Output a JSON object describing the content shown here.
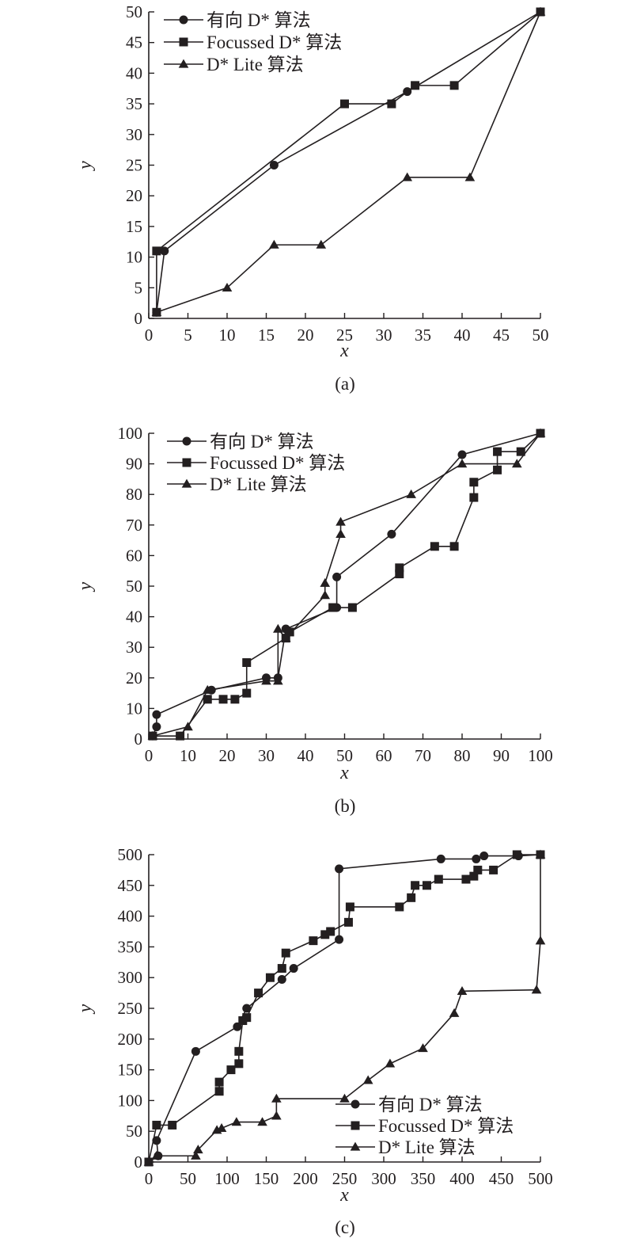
{
  "chart_data": [
    {
      "type": "line",
      "caption": "(a)",
      "xlabel": "x",
      "ylabel": "y",
      "xlim": [
        0,
        50
      ],
      "ylim": [
        0,
        50
      ],
      "xticks": [
        0,
        5,
        10,
        15,
        20,
        25,
        30,
        35,
        40,
        45,
        50
      ],
      "yticks": [
        0,
        5,
        10,
        15,
        20,
        25,
        30,
        35,
        40,
        45,
        50
      ],
      "legend_position": "top-left",
      "series": [
        {
          "name": "有向 D* 算法",
          "marker": "circle",
          "points": [
            [
              1,
              1
            ],
            [
              2,
              11
            ],
            [
              16,
              25
            ],
            [
              33,
              37
            ],
            [
              50,
              50
            ]
          ]
        },
        {
          "name": "Focussed D* 算法",
          "marker": "square",
          "points": [
            [
              1,
              1
            ],
            [
              1,
              11
            ],
            [
              25,
              35
            ],
            [
              31,
              35
            ],
            [
              34,
              38
            ],
            [
              39,
              38
            ],
            [
              50,
              50
            ]
          ]
        },
        {
          "name": "D* Lite 算法",
          "marker": "triangle",
          "points": [
            [
              1,
              1
            ],
            [
              10,
              5
            ],
            [
              16,
              12
            ],
            [
              22,
              12
            ],
            [
              33,
              23
            ],
            [
              41,
              23
            ],
            [
              50,
              50
            ]
          ]
        }
      ]
    },
    {
      "type": "line",
      "caption": "(b)",
      "xlabel": "x",
      "ylabel": "y",
      "xlim": [
        0,
        100
      ],
      "ylim": [
        0,
        100
      ],
      "xticks": [
        0,
        10,
        20,
        30,
        40,
        50,
        60,
        70,
        80,
        90,
        100
      ],
      "yticks": [
        0,
        10,
        20,
        30,
        40,
        50,
        60,
        70,
        80,
        90,
        100
      ],
      "legend_position": "top-left",
      "series": [
        {
          "name": "有向 D* 算法",
          "marker": "circle",
          "points": [
            [
              1,
              1
            ],
            [
              2,
              4
            ],
            [
              2,
              8
            ],
            [
              16,
              16
            ],
            [
              30,
              20
            ],
            [
              33,
              20
            ],
            [
              35,
              36
            ],
            [
              48,
              43
            ],
            [
              48,
              53
            ],
            [
              62,
              67
            ],
            [
              80,
              93
            ],
            [
              100,
              100
            ]
          ]
        },
        {
          "name": "Focussed D* 算法",
          "marker": "square",
          "points": [
            [
              1,
              1
            ],
            [
              8,
              1
            ],
            [
              15,
              13
            ],
            [
              19,
              13
            ],
            [
              22,
              13
            ],
            [
              25,
              15
            ],
            [
              25,
              25
            ],
            [
              35,
              33
            ],
            [
              36,
              35
            ],
            [
              47,
              43
            ],
            [
              52,
              43
            ],
            [
              64,
              54
            ],
            [
              64,
              56
            ],
            [
              73,
              63
            ],
            [
              78,
              63
            ],
            [
              83,
              79
            ],
            [
              83,
              84
            ],
            [
              89,
              88
            ],
            [
              89,
              94
            ],
            [
              95,
              94
            ],
            [
              100,
              100
            ]
          ]
        },
        {
          "name": "D* Lite 算法",
          "marker": "triangle",
          "points": [
            [
              1,
              1
            ],
            [
              10,
              4
            ],
            [
              15,
              16
            ],
            [
              30,
              19
            ],
            [
              33,
              19
            ],
            [
              33,
              36
            ],
            [
              35,
              33
            ],
            [
              45,
              47
            ],
            [
              45,
              51
            ],
            [
              49,
              67
            ],
            [
              49,
              71
            ],
            [
              67,
              80
            ],
            [
              80,
              90
            ],
            [
              94,
              90
            ],
            [
              100,
              100
            ]
          ]
        }
      ]
    },
    {
      "type": "line",
      "caption": "(c)",
      "xlabel": "x",
      "ylabel": "y",
      "xlim": [
        0,
        500
      ],
      "ylim": [
        0,
        500
      ],
      "xticks": [
        0,
        50,
        100,
        150,
        200,
        250,
        300,
        350,
        400,
        450,
        500
      ],
      "yticks": [
        0,
        50,
        100,
        150,
        200,
        250,
        300,
        350,
        400,
        450,
        500
      ],
      "legend_position": "bottom-right",
      "series": [
        {
          "name": "有向 D* 算法",
          "marker": "circle",
          "points": [
            [
              0,
              0
            ],
            [
              12,
              10
            ],
            [
              10,
              35
            ],
            [
              60,
              180
            ],
            [
              113,
              220
            ],
            [
              125,
              250
            ],
            [
              170,
              297
            ],
            [
              185,
              315
            ],
            [
              243,
              362
            ],
            [
              243,
              477
            ],
            [
              373,
              493
            ],
            [
              418,
              493
            ],
            [
              428,
              498
            ],
            [
              472,
              498
            ],
            [
              500,
              500
            ]
          ]
        },
        {
          "name": "Focussed D* 算法",
          "marker": "square",
          "points": [
            [
              0,
              0
            ],
            [
              10,
              60
            ],
            [
              30,
              60
            ],
            [
              90,
              115
            ],
            [
              90,
              130
            ],
            [
              105,
              150
            ],
            [
              115,
              160
            ],
            [
              115,
              180
            ],
            [
              120,
              230
            ],
            [
              125,
              235
            ],
            [
              140,
              275
            ],
            [
              155,
              300
            ],
            [
              170,
              315
            ],
            [
              175,
              340
            ],
            [
              210,
              360
            ],
            [
              225,
              370
            ],
            [
              232,
              375
            ],
            [
              255,
              390
            ],
            [
              257,
              415
            ],
            [
              320,
              415
            ],
            [
              335,
              430
            ],
            [
              340,
              450
            ],
            [
              355,
              450
            ],
            [
              370,
              460
            ],
            [
              405,
              460
            ],
            [
              415,
              465
            ],
            [
              420,
              475
            ],
            [
              440,
              475
            ],
            [
              470,
              500
            ],
            [
              500,
              500
            ]
          ]
        },
        {
          "name": "D* Lite 算法",
          "marker": "triangle",
          "points": [
            [
              0,
              0
            ],
            [
              10,
              10
            ],
            [
              60,
              10
            ],
            [
              63,
              20
            ],
            [
              87,
              52
            ],
            [
              93,
              55
            ],
            [
              112,
              65
            ],
            [
              145,
              65
            ],
            [
              163,
              75
            ],
            [
              163,
              103
            ],
            [
              250,
              103
            ],
            [
              280,
              133
            ],
            [
              308,
              160
            ],
            [
              350,
              185
            ],
            [
              390,
              242
            ],
            [
              400,
              278
            ],
            [
              495,
              280
            ],
            [
              500,
              360
            ],
            [
              500,
              500
            ]
          ]
        }
      ]
    }
  ]
}
